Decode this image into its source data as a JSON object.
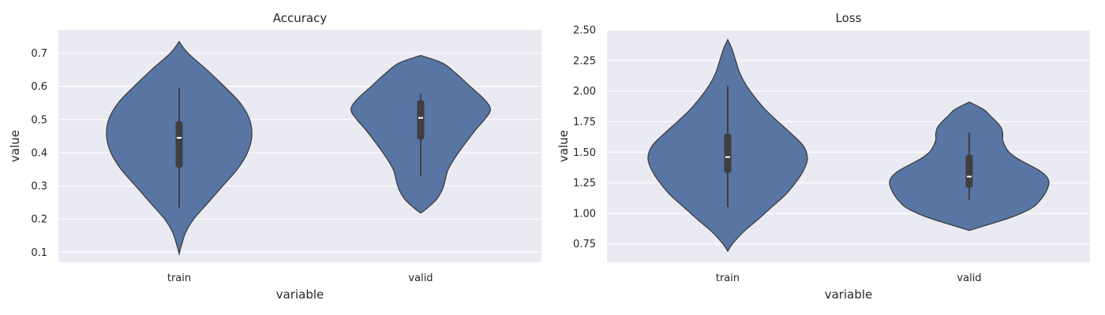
{
  "chart_data": [
    {
      "type": "violin",
      "title": "Accuracy",
      "xlabel": "variable",
      "ylabel": "value",
      "categories": [
        "train",
        "valid"
      ],
      "ylim": [
        0.07,
        0.77
      ],
      "yticks": [
        0.1,
        0.2,
        0.3,
        0.4,
        0.5,
        0.6,
        0.7
      ],
      "ytick_labels": [
        "0.1",
        "0.2",
        "0.3",
        "0.4",
        "0.5",
        "0.6",
        "0.7"
      ],
      "grid": true,
      "background": "#eaeaf2",
      "fill_color": "#5875a4",
      "violins": [
        {
          "category": "train",
          "min": 0.095,
          "max": 0.735,
          "whisker_low": 0.235,
          "q1": 0.355,
          "median": 0.445,
          "q3": 0.495,
          "whisker_high": 0.595,
          "profile": [
            [
              0.095,
              0.0
            ],
            [
              0.12,
              0.03
            ],
            [
              0.16,
              0.09
            ],
            [
              0.2,
              0.2
            ],
            [
              0.25,
              0.4
            ],
            [
              0.3,
              0.6
            ],
            [
              0.35,
              0.8
            ],
            [
              0.4,
              0.94
            ],
            [
              0.45,
              1.0
            ],
            [
              0.5,
              0.97
            ],
            [
              0.55,
              0.84
            ],
            [
              0.6,
              0.62
            ],
            [
              0.65,
              0.38
            ],
            [
              0.69,
              0.17
            ],
            [
              0.71,
              0.08
            ],
            [
              0.735,
              0.0
            ]
          ]
        },
        {
          "category": "valid",
          "min": 0.218,
          "max": 0.693,
          "whisker_low": 0.33,
          "q1": 0.44,
          "median": 0.505,
          "q3": 0.558,
          "whisker_high": 0.578,
          "profile": [
            [
              0.218,
              0.0
            ],
            [
              0.235,
              0.1
            ],
            [
              0.26,
              0.22
            ],
            [
              0.29,
              0.3
            ],
            [
              0.32,
              0.34
            ],
            [
              0.345,
              0.37
            ],
            [
              0.37,
              0.43
            ],
            [
              0.4,
              0.52
            ],
            [
              0.43,
              0.62
            ],
            [
              0.47,
              0.76
            ],
            [
              0.5,
              0.88
            ],
            [
              0.53,
              0.96
            ],
            [
              0.56,
              0.88
            ],
            [
              0.6,
              0.68
            ],
            [
              0.64,
              0.48
            ],
            [
              0.67,
              0.3
            ],
            [
              0.693,
              0.0
            ]
          ]
        }
      ]
    },
    {
      "type": "violin",
      "title": "Loss",
      "xlabel": "variable",
      "ylabel": "value",
      "categories": [
        "train",
        "valid"
      ],
      "ylim": [
        0.6,
        2.5
      ],
      "yticks": [
        0.75,
        1.0,
        1.25,
        1.5,
        1.75,
        2.0,
        2.25,
        2.5
      ],
      "ytick_labels": [
        "0.75",
        "1.00",
        "1.25",
        "1.50",
        "1.75",
        "2.00",
        "2.25",
        "2.50"
      ],
      "grid": true,
      "background": "#eaeaf2",
      "fill_color": "#5875a4",
      "violins": [
        {
          "category": "train",
          "min": 0.69,
          "max": 2.42,
          "whisker_low": 1.05,
          "q1": 1.33,
          "median": 1.46,
          "q3": 1.65,
          "whisker_high": 2.04,
          "profile": [
            [
              0.69,
              0.0
            ],
            [
              0.75,
              0.06
            ],
            [
              0.85,
              0.2
            ],
            [
              0.95,
              0.38
            ],
            [
              1.05,
              0.55
            ],
            [
              1.15,
              0.72
            ],
            [
              1.25,
              0.85
            ],
            [
              1.35,
              0.95
            ],
            [
              1.45,
              1.0
            ],
            [
              1.55,
              0.95
            ],
            [
              1.65,
              0.8
            ],
            [
              1.75,
              0.63
            ],
            [
              1.85,
              0.47
            ],
            [
              1.95,
              0.34
            ],
            [
              2.05,
              0.23
            ],
            [
              2.15,
              0.15
            ],
            [
              2.25,
              0.1
            ],
            [
              2.35,
              0.05
            ],
            [
              2.42,
              0.0
            ]
          ]
        },
        {
          "category": "valid",
          "min": 0.86,
          "max": 1.91,
          "whisker_low": 1.11,
          "q1": 1.21,
          "median": 1.3,
          "q3": 1.48,
          "whisker_high": 1.66,
          "profile": [
            [
              0.86,
              0.0
            ],
            [
              0.9,
              0.2
            ],
            [
              0.95,
              0.45
            ],
            [
              1.0,
              0.65
            ],
            [
              1.05,
              0.8
            ],
            [
              1.1,
              0.88
            ],
            [
              1.15,
              0.94
            ],
            [
              1.2,
              0.98
            ],
            [
              1.25,
              1.0
            ],
            [
              1.3,
              0.97
            ],
            [
              1.35,
              0.88
            ],
            [
              1.4,
              0.74
            ],
            [
              1.45,
              0.6
            ],
            [
              1.5,
              0.5
            ],
            [
              1.55,
              0.45
            ],
            [
              1.6,
              0.42
            ],
            [
              1.65,
              0.42
            ],
            [
              1.7,
              0.4
            ],
            [
              1.75,
              0.34
            ],
            [
              1.8,
              0.26
            ],
            [
              1.85,
              0.18
            ],
            [
              1.91,
              0.0
            ]
          ]
        }
      ]
    }
  ]
}
